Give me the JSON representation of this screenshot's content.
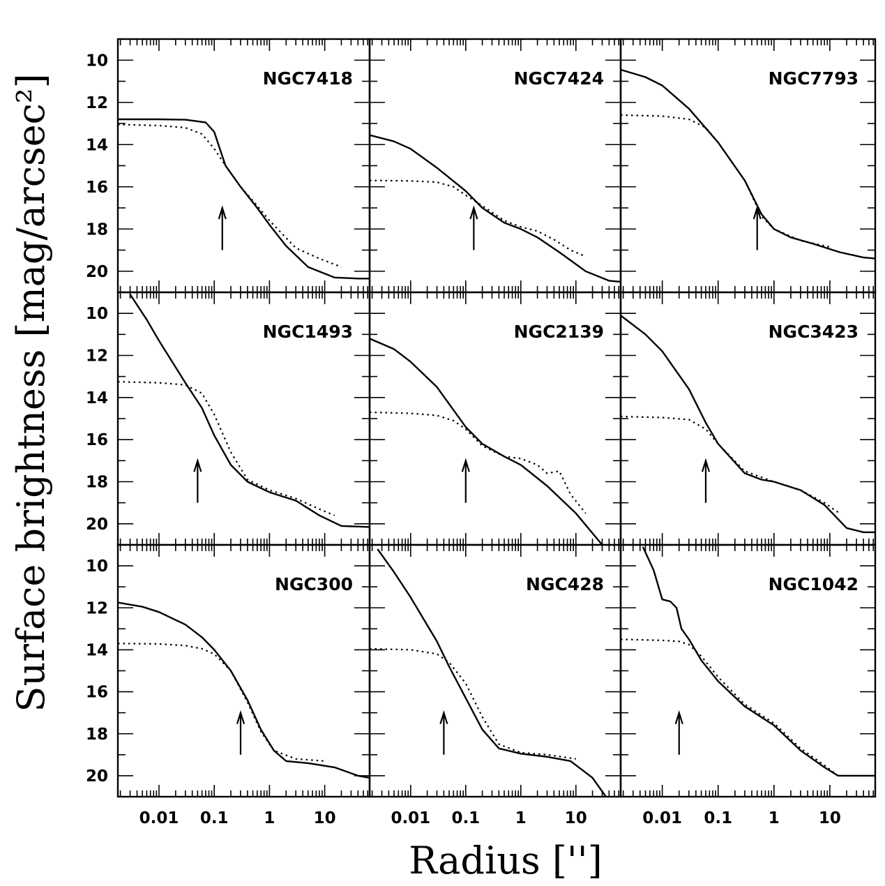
{
  "figure": {
    "xlabel": "Radius ['']",
    "ylabel": "Surface brightness [mag/arcsec²]"
  },
  "chart_data": {
    "type": "line",
    "grid": false,
    "x_scale": "log",
    "xlim": [
      0.0018,
      65
    ],
    "ylim": [
      21,
      9
    ],
    "x_tick_labels": [
      "0.01",
      "0.1",
      "1",
      "10"
    ],
    "y_tick_labels": [
      "10",
      "12",
      "14",
      "16",
      "18",
      "20"
    ],
    "panels": [
      {
        "name": "NGC7418",
        "arrow_x": 0.14,
        "series": [
          {
            "style": "solid",
            "points": [
              [
                0.0018,
                12.8
              ],
              [
                0.01,
                12.8
              ],
              [
                0.03,
                12.82
              ],
              [
                0.07,
                12.95
              ],
              [
                0.1,
                13.4
              ],
              [
                0.13,
                14.3
              ],
              [
                0.16,
                15.0
              ],
              [
                0.3,
                16.0
              ],
              [
                0.6,
                17.0
              ],
              [
                1,
                17.8
              ],
              [
                2,
                18.8
              ],
              [
                5,
                19.8
              ],
              [
                15,
                20.3
              ],
              [
                40,
                20.35
              ],
              [
                65,
                20.35
              ]
            ]
          },
          {
            "style": "dotted",
            "points": [
              [
                0.0018,
                13.05
              ],
              [
                0.01,
                13.1
              ],
              [
                0.03,
                13.2
              ],
              [
                0.06,
                13.5
              ],
              [
                0.1,
                14.2
              ],
              [
                0.16,
                15.0
              ],
              [
                0.3,
                16.0
              ],
              [
                0.6,
                16.9
              ],
              [
                1,
                17.6
              ],
              [
                3,
                18.9
              ],
              [
                8,
                19.4
              ],
              [
                20,
                19.8
              ]
            ]
          }
        ]
      },
      {
        "name": "NGC7424",
        "arrow_x": 0.14,
        "series": [
          {
            "style": "solid",
            "points": [
              [
                0.0018,
                13.55
              ],
              [
                0.005,
                13.85
              ],
              [
                0.01,
                14.2
              ],
              [
                0.03,
                15.1
              ],
              [
                0.1,
                16.2
              ],
              [
                0.2,
                17.0
              ],
              [
                0.5,
                17.7
              ],
              [
                1,
                18.0
              ],
              [
                2,
                18.4
              ],
              [
                5,
                19.1
              ],
              [
                15,
                20.0
              ],
              [
                40,
                20.45
              ],
              [
                65,
                20.5
              ]
            ]
          },
          {
            "style": "dotted",
            "points": [
              [
                0.0018,
                15.7
              ],
              [
                0.01,
                15.72
              ],
              [
                0.03,
                15.78
              ],
              [
                0.06,
                16.0
              ],
              [
                0.1,
                16.4
              ],
              [
                0.2,
                16.9
              ],
              [
                0.5,
                17.6
              ],
              [
                1,
                17.9
              ],
              [
                2,
                18.1
              ],
              [
                4,
                18.5
              ],
              [
                8,
                19.0
              ],
              [
                15,
                19.3
              ]
            ]
          }
        ]
      },
      {
        "name": "NGC7793",
        "arrow_x": 0.5,
        "series": [
          {
            "style": "solid",
            "points": [
              [
                0.0018,
                10.45
              ],
              [
                0.005,
                10.8
              ],
              [
                0.01,
                11.2
              ],
              [
                0.03,
                12.3
              ],
              [
                0.1,
                13.9
              ],
              [
                0.3,
                15.7
              ],
              [
                0.6,
                17.3
              ],
              [
                1,
                18.0
              ],
              [
                2,
                18.4
              ],
              [
                5,
                18.7
              ],
              [
                15,
                19.1
              ],
              [
                40,
                19.35
              ],
              [
                65,
                19.4
              ]
            ]
          },
          {
            "style": "dotted",
            "points": [
              [
                0.0018,
                12.6
              ],
              [
                0.01,
                12.65
              ],
              [
                0.03,
                12.8
              ],
              [
                0.06,
                13.2
              ],
              [
                0.1,
                13.9
              ],
              [
                0.3,
                15.7
              ],
              [
                0.6,
                17.4
              ],
              [
                1,
                18.0
              ],
              [
                3,
                18.55
              ],
              [
                10,
                18.85
              ]
            ]
          }
        ]
      },
      {
        "name": "NGC1493",
        "arrow_x": 0.05,
        "series": [
          {
            "style": "solid",
            "points": [
              [
                0.003,
                9.1
              ],
              [
                0.006,
                10.3
              ],
              [
                0.01,
                11.3
              ],
              [
                0.03,
                13.3
              ],
              [
                0.06,
                14.5
              ],
              [
                0.1,
                15.8
              ],
              [
                0.2,
                17.2
              ],
              [
                0.4,
                18.0
              ],
              [
                1,
                18.5
              ],
              [
                3,
                18.9
              ],
              [
                8,
                19.6
              ],
              [
                20,
                20.1
              ],
              [
                65,
                20.15
              ]
            ]
          },
          {
            "style": "dotted",
            "points": [
              [
                0.0018,
                13.25
              ],
              [
                0.01,
                13.3
              ],
              [
                0.03,
                13.4
              ],
              [
                0.06,
                13.8
              ],
              [
                0.1,
                14.8
              ],
              [
                0.2,
                16.6
              ],
              [
                0.4,
                17.9
              ],
              [
                1,
                18.4
              ],
              [
                3,
                18.8
              ],
              [
                8,
                19.3
              ],
              [
                15,
                19.6
              ]
            ]
          }
        ]
      },
      {
        "name": "NGC2139",
        "arrow_x": 0.1,
        "series": [
          {
            "style": "solid",
            "points": [
              [
                0.0018,
                11.2
              ],
              [
                0.005,
                11.7
              ],
              [
                0.01,
                12.3
              ],
              [
                0.03,
                13.5
              ],
              [
                0.1,
                15.4
              ],
              [
                0.2,
                16.2
              ],
              [
                0.5,
                16.8
              ],
              [
                1,
                17.2
              ],
              [
                3,
                18.2
              ],
              [
                10,
                19.5
              ],
              [
                30,
                21.0
              ]
            ]
          },
          {
            "style": "dotted",
            "points": [
              [
                0.0018,
                14.7
              ],
              [
                0.01,
                14.75
              ],
              [
                0.03,
                14.85
              ],
              [
                0.06,
                15.1
              ],
              [
                0.1,
                15.5
              ],
              [
                0.2,
                16.3
              ],
              [
                0.5,
                16.8
              ],
              [
                1,
                16.9
              ],
              [
                2,
                17.2
              ],
              [
                3,
                17.6
              ],
              [
                5,
                17.5
              ],
              [
                8,
                18.6
              ],
              [
                15,
                19.5
              ]
            ]
          }
        ]
      },
      {
        "name": "NGC3423",
        "arrow_x": 0.06,
        "series": [
          {
            "style": "solid",
            "points": [
              [
                0.0018,
                10.1
              ],
              [
                0.005,
                11.0
              ],
              [
                0.01,
                11.8
              ],
              [
                0.03,
                13.6
              ],
              [
                0.06,
                15.2
              ],
              [
                0.1,
                16.2
              ],
              [
                0.3,
                17.6
              ],
              [
                0.6,
                17.9
              ],
              [
                1,
                18.0
              ],
              [
                3,
                18.4
              ],
              [
                8,
                19.1
              ],
              [
                20,
                20.2
              ],
              [
                40,
                20.4
              ],
              [
                65,
                20.4
              ]
            ]
          },
          {
            "style": "dotted",
            "points": [
              [
                0.0018,
                14.9
              ],
              [
                0.01,
                14.95
              ],
              [
                0.03,
                15.05
              ],
              [
                0.06,
                15.5
              ],
              [
                0.1,
                16.2
              ],
              [
                0.3,
                17.5
              ],
              [
                1,
                18.0
              ],
              [
                3,
                18.4
              ],
              [
                8,
                19.0
              ],
              [
                15,
                19.5
              ]
            ]
          }
        ]
      },
      {
        "name": "NGC300",
        "arrow_x": 0.3,
        "series": [
          {
            "style": "solid",
            "points": [
              [
                0.0018,
                11.75
              ],
              [
                0.005,
                11.95
              ],
              [
                0.01,
                12.2
              ],
              [
                0.03,
                12.8
              ],
              [
                0.06,
                13.4
              ],
              [
                0.1,
                14.0
              ],
              [
                0.2,
                15.0
              ],
              [
                0.4,
                16.4
              ],
              [
                0.7,
                17.8
              ],
              [
                1.2,
                18.8
              ],
              [
                2,
                19.3
              ],
              [
                5,
                19.4
              ],
              [
                15,
                19.6
              ],
              [
                40,
                20.0
              ],
              [
                65,
                20.1
              ]
            ]
          },
          {
            "style": "dotted",
            "points": [
              [
                0.0018,
                13.7
              ],
              [
                0.01,
                13.72
              ],
              [
                0.03,
                13.8
              ],
              [
                0.06,
                13.95
              ],
              [
                0.1,
                14.2
              ],
              [
                0.2,
                15.0
              ],
              [
                0.4,
                16.5
              ],
              [
                0.7,
                17.9
              ],
              [
                1.2,
                18.8
              ],
              [
                3,
                19.2
              ],
              [
                10,
                19.3
              ]
            ]
          }
        ]
      },
      {
        "name": "NGC428",
        "arrow_x": 0.04,
        "series": [
          {
            "style": "solid",
            "points": [
              [
                0.0025,
                9.2
              ],
              [
                0.005,
                10.3
              ],
              [
                0.01,
                11.5
              ],
              [
                0.03,
                13.6
              ],
              [
                0.05,
                14.8
              ],
              [
                0.1,
                16.3
              ],
              [
                0.2,
                17.8
              ],
              [
                0.4,
                18.7
              ],
              [
                1,
                18.95
              ],
              [
                3,
                19.1
              ],
              [
                8,
                19.3
              ],
              [
                20,
                20.1
              ],
              [
                35,
                21.0
              ]
            ]
          },
          {
            "style": "dotted",
            "points": [
              [
                0.0018,
                13.95
              ],
              [
                0.01,
                14.0
              ],
              [
                0.03,
                14.2
              ],
              [
                0.05,
                14.6
              ],
              [
                0.1,
                15.6
              ],
              [
                0.2,
                17.2
              ],
              [
                0.4,
                18.5
              ],
              [
                1,
                18.9
              ],
              [
                3,
                19.0
              ],
              [
                10,
                19.2
              ]
            ]
          }
        ]
      },
      {
        "name": "NGC1042",
        "arrow_x": 0.02,
        "series": [
          {
            "style": "solid",
            "points": [
              [
                0.0045,
                9.1
              ],
              [
                0.007,
                10.2
              ],
              [
                0.01,
                11.6
              ],
              [
                0.014,
                11.7
              ],
              [
                0.018,
                12.0
              ],
              [
                0.022,
                13.0
              ],
              [
                0.03,
                13.5
              ],
              [
                0.05,
                14.5
              ],
              [
                0.1,
                15.5
              ],
              [
                0.3,
                16.7
              ],
              [
                1,
                17.6
              ],
              [
                3,
                18.8
              ],
              [
                8,
                19.6
              ],
              [
                14,
                20.0
              ],
              [
                30,
                20.0
              ],
              [
                65,
                20.0
              ]
            ]
          },
          {
            "style": "dotted",
            "points": [
              [
                0.0018,
                13.5
              ],
              [
                0.01,
                13.55
              ],
              [
                0.02,
                13.6
              ],
              [
                0.03,
                13.75
              ],
              [
                0.05,
                14.3
              ],
              [
                0.1,
                15.3
              ],
              [
                0.3,
                16.6
              ],
              [
                1,
                17.5
              ],
              [
                3,
                18.7
              ],
              [
                8,
                19.5
              ],
              [
                14,
                20.0
              ]
            ]
          }
        ]
      }
    ]
  }
}
